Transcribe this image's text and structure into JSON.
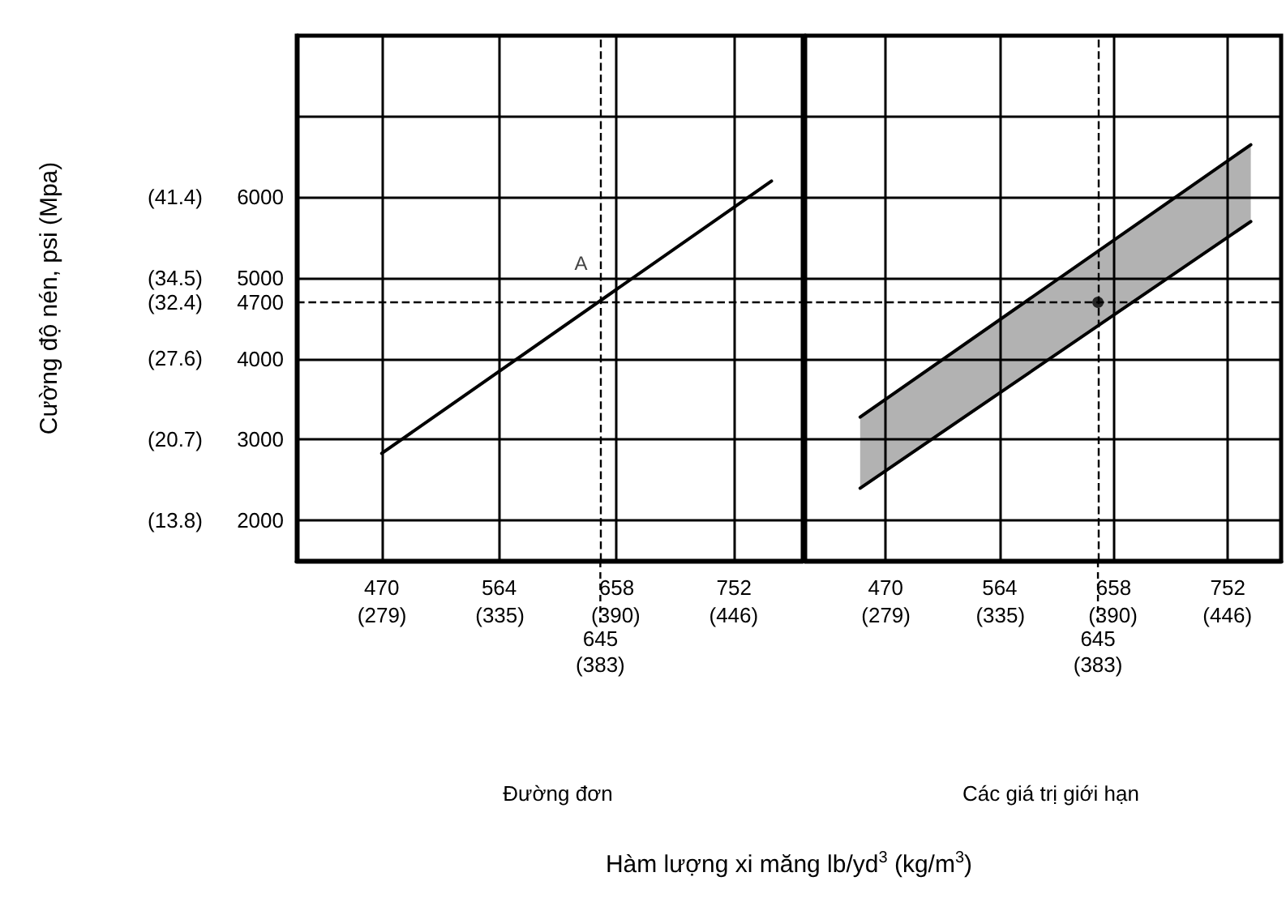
{
  "chart_data": [
    {
      "type": "line",
      "title": "Đường đơn",
      "xlabel": "Hàm lượng xi măng lb/yd$^{3}$ (kg/m$^{3}$)",
      "y2label": "Cường độ nén, psi (Mpa)",
      "xlim": [
        402,
        807
      ],
      "xticks": [
        470,
        564,
        658,
        752
      ],
      "x2lim": [
        238.5,
        478.8
      ],
      "x2ticks": [
        {
          "value": 279,
          "label": "(279)"
        },
        {
          "value": 335,
          "label": "(335)"
        },
        {
          "value": 390,
          "label": "(390)"
        },
        {
          "value": 446,
          "label": "(446)"
        }
      ],
      "ylim": [
        1500,
        8000
      ],
      "yticks": [
        2000,
        3000,
        4000,
        5000,
        6000,
        {
          "value": 7000,
          "label": null
        }
      ],
      "y2lim": [
        10.34,
        55.16
      ],
      "y2ticks": [
        {
          "value": 13.8,
          "label": "(13.8)"
        },
        {
          "value": 20.7,
          "label": "(20.7)"
        },
        {
          "value": 27.6,
          "label": "(27.6)"
        },
        {
          "value": 32.4,
          "label": "(32.4)"
        },
        {
          "value": 34.5,
          "label": "(34.5)"
        },
        {
          "value": 41.4,
          "label": "(41.4)"
        }
      ],
      "grid": true,
      "marker": "none",
      "series": [
        {
          "x": [
            470,
            782
          ],
          "values": [
            2830,
            6200
          ],
          "color": "#000000"
        }
      ],
      "ref_lines": [
        {
          "axis": "y",
          "value": 4700,
          "label": "4700",
          "line_style": "dashed",
          "color": "#000000"
        },
        {
          "axis": "x",
          "value": 645,
          "label": "645\n(383)",
          "line_style": "dashed",
          "color": "#000000"
        }
      ],
      "annotations": [
        {
          "text": "A",
          "x": 645,
          "y": 4700
        }
      ]
    },
    {
      "type": "line",
      "title": "Các giá trị giới hạn",
      "xlim": [
        403,
        796
      ],
      "xticks": [
        470,
        564,
        658,
        752
      ],
      "x2lim": [
        239.1,
        472.3
      ],
      "x2ticks": [
        {
          "value": 279,
          "label": "(279)"
        },
        {
          "value": 335,
          "label": "(335)"
        },
        {
          "value": 390,
          "label": "(390)"
        },
        {
          "value": 446,
          "label": "(446)"
        }
      ],
      "ylim": [
        1500,
        8000
      ],
      "yticks": [
        2000,
        3000,
        4000,
        5000,
        6000,
        7000
      ],
      "tick_labels": "x",
      "grid": true,
      "marker": "none",
      "series": [
        {
          "x": [
            449,
            771
          ],
          "values": [
            3280,
            6650
          ],
          "lower": [
            2400,
            5700
          ],
          "upper": [
            3280,
            6650
          ],
          "color": "#000000"
        },
        {
          "x": [
            449,
            771
          ],
          "values": [
            2400,
            5700
          ],
          "color": "#000000"
        },
        {
          "type": "scatter",
          "marker": "circle",
          "x": [
            645
          ],
          "values": [
            4700
          ],
          "color": "#000000"
        }
      ],
      "ref_lines": [
        {
          "axis": "y",
          "value": 4700,
          "label": null,
          "line_style": "dashed",
          "color": "#000000"
        },
        {
          "axis": "x",
          "value": 645,
          "label": "645\n(383)",
          "line_style": "dashed",
          "color": "#000000"
        }
      ]
    }
  ]
}
